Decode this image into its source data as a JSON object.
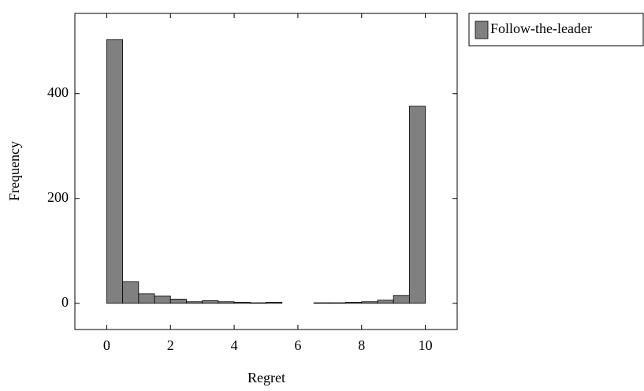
{
  "chart_data": {
    "type": "histogram",
    "xlabel": "Regret",
    "ylabel": "Frequency",
    "bins": [
      0,
      0.5,
      1,
      1.5,
      2,
      2.5,
      3,
      3.5,
      4,
      4.5,
      5,
      5.5,
      6,
      6.5,
      7,
      7.5,
      8,
      8.5,
      9,
      9.5,
      10
    ],
    "series": [
      {
        "name": "Follow-the-leader",
        "color": "#808080",
        "values": [
          503,
          41,
          18,
          14,
          8,
          3,
          5,
          3,
          2,
          1,
          2,
          0,
          0,
          1,
          1,
          2,
          3,
          6,
          15,
          376
        ]
      }
    ],
    "xlim": [
      -1,
      11
    ],
    "ylim": [
      -50,
      553
    ],
    "xticks": [
      0,
      2,
      4,
      6,
      8,
      10
    ],
    "yticks": [
      0,
      200,
      400
    ],
    "legend": "outside-top-right"
  }
}
